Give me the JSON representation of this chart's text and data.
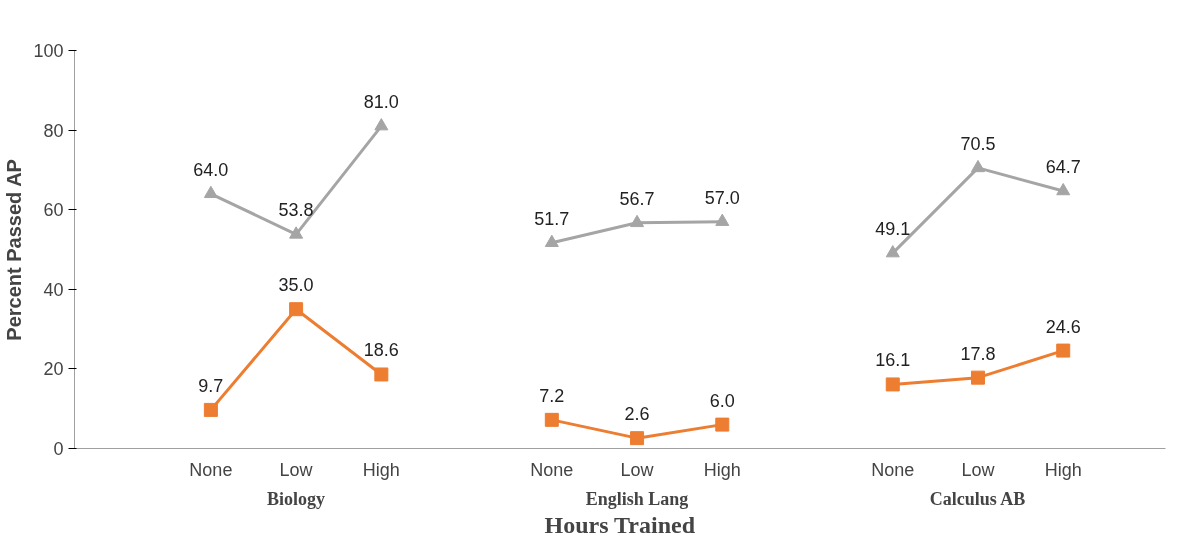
{
  "chart_data": {
    "type": "line",
    "xlabel": "Hours Trained",
    "ylabel": "Percent Passed AP",
    "categories": [
      "None",
      "Low",
      "High",
      null,
      "None",
      "Low",
      "High",
      null,
      "None",
      "Low",
      "High"
    ],
    "series": [
      {
        "color": "#ed7d31",
        "marker": "square",
        "values": [
          9.7,
          35,
          18.6,
          null,
          7.2,
          2.6,
          6,
          null,
          16.1,
          17.8,
          24.6
        ],
        "value_labels": [
          "9.7",
          "35.0",
          "18.6",
          null,
          "7.2",
          "2.6",
          "6.0",
          null,
          "16.1",
          "17.8",
          "24.6"
        ]
      },
      {
        "color": "#a5a5a5",
        "marker": "triangle",
        "values": [
          64,
          53.8,
          81,
          null,
          51.7,
          56.7,
          57,
          null,
          49.1,
          70.5,
          64.7
        ],
        "value_labels": [
          "64.0",
          "53.8",
          "81.0",
          null,
          "51.7",
          "56.7",
          "57.0",
          null,
          "49.1",
          "70.5",
          "64.7"
        ]
      }
    ],
    "annotations": [
      "Biology",
      "English Lang",
      "Calculus AB"
    ],
    "ylim": [
      0,
      100
    ],
    "yticks": [
      0,
      20,
      40,
      60,
      80,
      100
    ],
    "grid": false
  }
}
